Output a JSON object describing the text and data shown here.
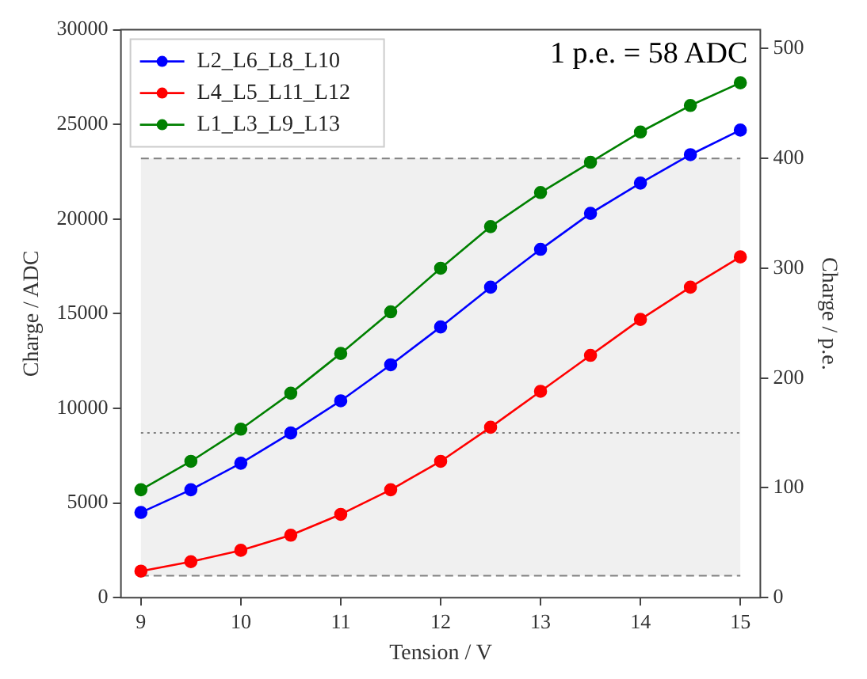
{
  "chart_data": {
    "type": "line",
    "xlabel": "Tension / V",
    "ylabel": "Charge / ADC",
    "y2label": "Charge / p.e.",
    "annotations": [
      "1 p.e. = 58 ADC"
    ],
    "x": [
      9,
      9.5,
      10,
      10.5,
      11,
      11.5,
      12,
      12.5,
      13,
      13.5,
      14,
      14.5,
      15
    ],
    "series": [
      {
        "name": "L2_L6_L8_L10",
        "color": "#0000ff",
        "values": [
          4500,
          5700,
          7100,
          8700,
          10400,
          12300,
          14300,
          16400,
          18400,
          20300,
          21900,
          23400,
          24700
        ]
      },
      {
        "name": "L4_L5_L11_L12",
        "color": "#ff0000",
        "values": [
          1400,
          1900,
          2500,
          3300,
          4400,
          5700,
          7200,
          9000,
          10900,
          12800,
          14700,
          16400,
          18000
        ]
      },
      {
        "name": "L1_L3_L9_L13",
        "color": "#008000",
        "values": [
          5700,
          7200,
          8900,
          10800,
          12900,
          15100,
          17400,
          19600,
          21400,
          23000,
          24600,
          26000,
          27200
        ]
      }
    ],
    "xlim": [
      8.8,
      15.2
    ],
    "xticks": [
      9,
      10,
      11,
      12,
      13,
      14,
      15
    ],
    "ylim": [
      0,
      30000
    ],
    "yticks": [
      0,
      5000,
      10000,
      15000,
      20000,
      25000,
      30000
    ],
    "y2lim": [
      0,
      517.2
    ],
    "y2ticks": [
      0,
      100,
      200,
      300,
      400,
      500
    ],
    "ref_lines": [
      {
        "axis": "y",
        "value": 1160,
        "color": "#808080",
        "line_style": "dashed"
      },
      {
        "axis": "y",
        "value": 23200,
        "color": "#808080",
        "line_style": "dashed"
      },
      {
        "axis": "y",
        "value": 8700,
        "color": "#808080",
        "line_style": "dotted"
      }
    ],
    "bands": [
      {
        "axis": "y",
        "from": 1160,
        "to": 23200,
        "color": "#f0f0f0"
      }
    ],
    "grid": false,
    "legend": "top left",
    "marker": "circle",
    "line_style": "solid"
  }
}
